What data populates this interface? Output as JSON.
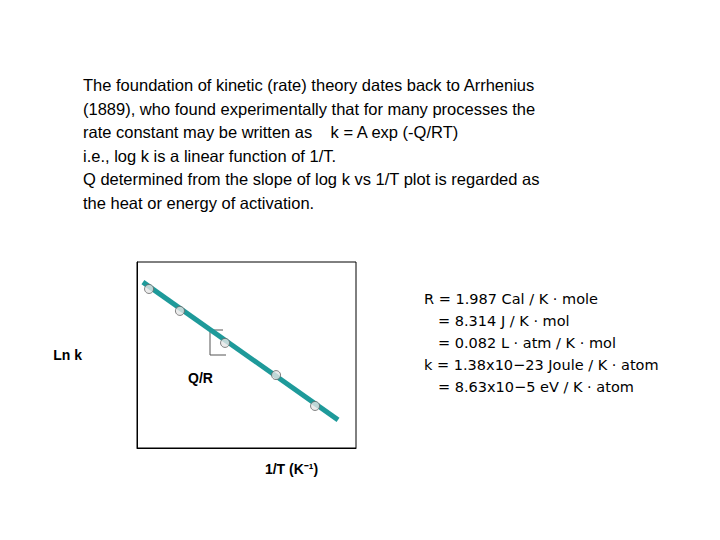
{
  "text": {
    "paragraph": [
      "The foundation of kinetic (rate) theory dates back to Arrhenius",
      "(1889), who found experimentally that for many processes the",
      "rate constant may be written as    k = A exp (-Q/RT)",
      "i.e., log k is a linear function of 1/T.",
      "Q determined from the slope of log k vs 1/T plot is regarded as",
      "the heat or energy of activation."
    ],
    "constants": [
      "R = 1.987 Cal / K · mole",
      "= 8.314 J / K · mol",
      "= 0.082 L · atm / K · mol",
      "k = 1.38x10−23 Joule / K · atom",
      "= 8.63x10−5 eV / K · atom"
    ]
  },
  "chart_data": {
    "type": "scatter",
    "x_label": "1/T (K⁻¹)",
    "y_label": "Ln k",
    "annotation": "Q/R",
    "xlim": [
      0,
      10
    ],
    "ylim": [
      0,
      10
    ],
    "tick_labels": false,
    "grid": false,
    "series": [
      {
        "type": "line",
        "color": "#1e9a9a",
        "line_style": "solid",
        "x": [
          0.27,
          9.18
        ],
        "values": [
          8.92,
          1.51
        ]
      },
      {
        "type": "scatter",
        "color": "#e6e6e6",
        "marker": "circle",
        "x": [
          0.55,
          1.96,
          4.02,
          6.35,
          8.13
        ],
        "values": [
          8.55,
          7.37,
          5.65,
          3.92,
          2.26
        ]
      }
    ]
  }
}
